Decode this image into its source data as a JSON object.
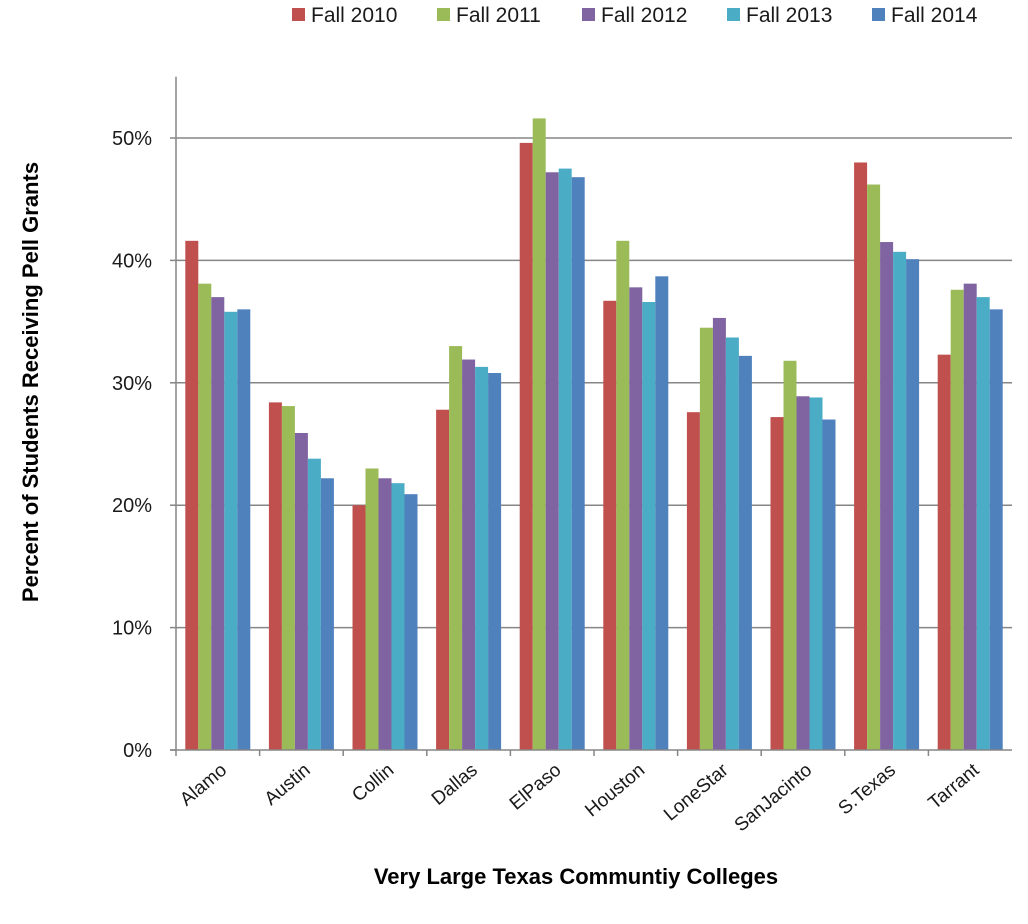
{
  "chart_data": {
    "type": "bar",
    "title": "",
    "xlabel": "Very Large Texas Communtiy Colleges",
    "ylabel": "Percent of Students Receiving Pell Grants",
    "ylim": [
      0,
      0.55
    ],
    "yticks": [
      0,
      0.1,
      0.2,
      0.3,
      0.4,
      0.5
    ],
    "ytick_labels": [
      "0%",
      "10%",
      "20%",
      "30%",
      "40%",
      "50%"
    ],
    "grid": "horizontal",
    "legend_position": "top-right",
    "categories": [
      "Alamo",
      "Austin",
      "Collin",
      "Dallas",
      "ElPaso",
      "Houston",
      "LoneStar",
      "SanJacinto",
      "S.Texas",
      "Tarrant"
    ],
    "series": [
      {
        "name": "Fall 2010",
        "color": "#C0504D",
        "values": [
          0.416,
          0.284,
          0.2,
          0.278,
          0.496,
          0.367,
          0.276,
          0.272,
          0.48,
          0.323
        ]
      },
      {
        "name": "Fall 2011",
        "color": "#9BBB59",
        "values": [
          0.381,
          0.281,
          0.23,
          0.33,
          0.516,
          0.416,
          0.345,
          0.318,
          0.462,
          0.376
        ]
      },
      {
        "name": "Fall 2012",
        "color": "#8064A2",
        "values": [
          0.37,
          0.259,
          0.222,
          0.319,
          0.472,
          0.378,
          0.353,
          0.289,
          0.415,
          0.381
        ]
      },
      {
        "name": "Fall 2013",
        "color": "#4BACC6",
        "values": [
          0.358,
          0.238,
          0.218,
          0.313,
          0.475,
          0.366,
          0.337,
          0.288,
          0.407,
          0.37
        ]
      },
      {
        "name": "Fall 2014",
        "color": "#4F81BD",
        "values": [
          0.36,
          0.222,
          0.209,
          0.308,
          0.468,
          0.387,
          0.322,
          0.27,
          0.401,
          0.36
        ]
      }
    ]
  }
}
